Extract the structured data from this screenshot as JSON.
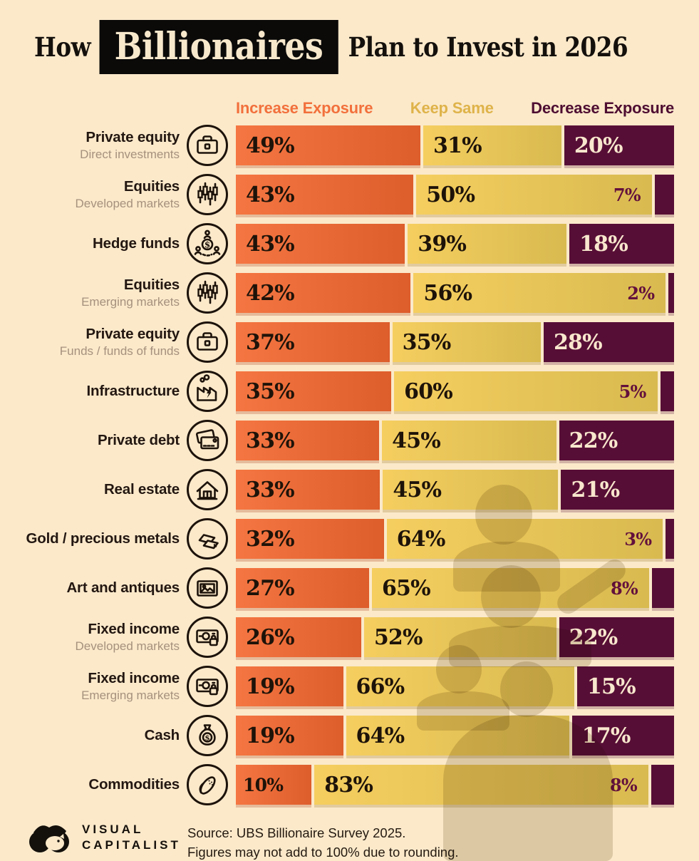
{
  "title": {
    "prefix": "How",
    "highlight": "Billionaires",
    "suffix": "Plan to Invest in 2026"
  },
  "legend": {
    "increase": "Increase Exposure",
    "keep": "Keep Same",
    "decrease": "Decrease Exposure"
  },
  "colors": {
    "background": "#FBE9CA",
    "increase": "#EE6A38",
    "keep": "#EFC757",
    "decrease": "#570E36",
    "title_box": "#0B0A09",
    "title_text": "#F7E8CC"
  },
  "chart_data": {
    "type": "bar",
    "stacked": true,
    "orientation": "horizontal",
    "unit": "%",
    "title": "How Billionaires Plan to Invest in 2026",
    "legend_position": "top",
    "series_names": [
      "Increase Exposure",
      "Keep Same",
      "Decrease Exposure"
    ],
    "rows": [
      {
        "label": "Private equity",
        "sublabel": "Direct investments",
        "icon": "briefcase-icon",
        "increase": 49,
        "keep": 31,
        "decrease": 20,
        "decrease_label_in_keep": false
      },
      {
        "label": "Equities",
        "sublabel": "Developed markets",
        "icon": "candlestick-chart-icon",
        "increase": 43,
        "keep": 50,
        "decrease": 7,
        "decrease_label_in_keep": true
      },
      {
        "label": "Hedge funds",
        "sublabel": "",
        "icon": "hedge-funds-icon",
        "increase": 43,
        "keep": 39,
        "decrease": 18,
        "decrease_label_in_keep": false
      },
      {
        "label": "Equities",
        "sublabel": "Emerging markets",
        "icon": "candlestick-chart-icon",
        "increase": 42,
        "keep": 56,
        "decrease": 2,
        "decrease_label_in_keep": true
      },
      {
        "label": "Private equity",
        "sublabel": "Funds / funds of funds",
        "icon": "briefcase-icon",
        "increase": 37,
        "keep": 35,
        "decrease": 28,
        "decrease_label_in_keep": false
      },
      {
        "label": "Infrastructure",
        "sublabel": "",
        "icon": "factory-icon",
        "increase": 35,
        "keep": 60,
        "decrease": 5,
        "decrease_label_in_keep": true
      },
      {
        "label": "Private debt",
        "sublabel": "",
        "icon": "credit-cards-icon",
        "increase": 33,
        "keep": 45,
        "decrease": 22,
        "decrease_label_in_keep": false
      },
      {
        "label": "Real estate",
        "sublabel": "",
        "icon": "house-icon",
        "increase": 33,
        "keep": 45,
        "decrease": 21,
        "decrease_label_in_keep": false
      },
      {
        "label": "Gold / precious metals",
        "sublabel": "",
        "icon": "gold-bars-icon",
        "increase": 32,
        "keep": 64,
        "decrease": 3,
        "decrease_label_in_keep": true
      },
      {
        "label": "Art and antiques",
        "sublabel": "",
        "icon": "picture-frame-icon",
        "increase": 27,
        "keep": 65,
        "decrease": 8,
        "decrease_label_in_keep": true
      },
      {
        "label": "Fixed income",
        "sublabel": "Developed markets",
        "icon": "banknote-lock-icon",
        "increase": 26,
        "keep": 52,
        "decrease": 22,
        "decrease_label_in_keep": false
      },
      {
        "label": "Fixed income",
        "sublabel": "Emerging markets",
        "icon": "banknote-lock-icon",
        "increase": 19,
        "keep": 66,
        "decrease": 15,
        "decrease_label_in_keep": false
      },
      {
        "label": "Cash",
        "sublabel": "",
        "icon": "money-bag-icon",
        "increase": 19,
        "keep": 64,
        "decrease": 17,
        "decrease_label_in_keep": false
      },
      {
        "label": "Commodities",
        "sublabel": "",
        "icon": "corn-icon",
        "increase": 10,
        "keep": 83,
        "decrease": 8,
        "decrease_label_in_keep": true
      }
    ]
  },
  "footer": {
    "brand_line1": "VISUAL",
    "brand_line2": "CAPITALIST",
    "source_line1": "Source: UBS Billionaire Survey 2025.",
    "source_line2": "Figures may not add to 100% due to rounding."
  }
}
